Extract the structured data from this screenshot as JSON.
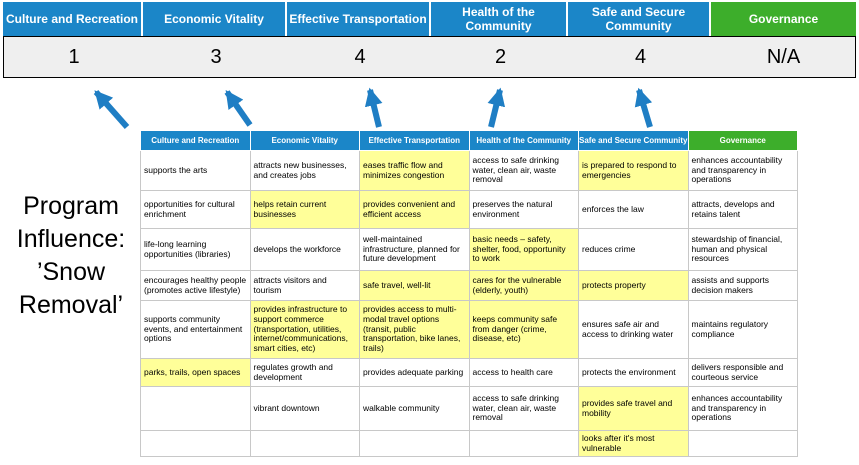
{
  "page": {
    "title": "Program\nInfluence:\n’Snow\nRemoval’"
  },
  "theme": {
    "header_blue": "#1b86c8",
    "header_green": "#3dae2b",
    "highlight_yellow": "#ffff99",
    "arrow_blue": "#1f7ec4",
    "score_band_bg": "#efefef"
  },
  "summary": {
    "columns": [
      {
        "label": "Culture and Recreation",
        "score": "1"
      },
      {
        "label": "Economic Vitality",
        "score": "3"
      },
      {
        "label": "Effective Transportation",
        "score": "4"
      },
      {
        "label": "Health of the Community",
        "score": "2"
      },
      {
        "label": "Safe and Secure Community",
        "score": "4"
      },
      {
        "label": "Governance",
        "score": "N/A"
      }
    ]
  },
  "matrix": {
    "rows": [
      [
        {
          "text": "supports the arts",
          "highlight": false
        },
        {
          "text": "attracts new businesses, and creates jobs",
          "highlight": false
        },
        {
          "text": "eases traffic flow and minimizes congestion",
          "highlight": true
        },
        {
          "text": "access to safe drinking water, clean air, waste removal",
          "highlight": false
        },
        {
          "text": "is prepared to respond to emergencies",
          "highlight": true
        },
        {
          "text": "enhances accountability and transparency in operations",
          "highlight": false
        }
      ],
      [
        {
          "text": "opportunities for cultural enrichment",
          "highlight": false
        },
        {
          "text": "helps retain current businesses",
          "highlight": true
        },
        {
          "text": "provides convenient and efficient access",
          "highlight": true
        },
        {
          "text": "preserves the natural environment",
          "highlight": false
        },
        {
          "text": "enforces the law",
          "highlight": false
        },
        {
          "text": "attracts, develops and retains talent",
          "highlight": false
        }
      ],
      [
        {
          "text": "life-long learning opportunities (libraries)",
          "highlight": false
        },
        {
          "text": "develops the workforce",
          "highlight": false
        },
        {
          "text": "well-maintained infrastructure, planned for future development",
          "highlight": false
        },
        {
          "text": "basic needs – safety, shelter, food, opportunity to work",
          "highlight": true
        },
        {
          "text": "reduces crime",
          "highlight": false
        },
        {
          "text": "stewardship of financial, human and physical resources",
          "highlight": false
        }
      ],
      [
        {
          "text": "encourages healthy people (promotes active lifestyle)",
          "highlight": false
        },
        {
          "text": "attracts visitors and tourism",
          "highlight": false
        },
        {
          "text": "safe travel, well-lit",
          "highlight": true
        },
        {
          "text": "cares for the vulnerable (elderly, youth)",
          "highlight": true
        },
        {
          "text": "protects property",
          "highlight": true
        },
        {
          "text": "assists and supports decision makers",
          "highlight": false
        }
      ],
      [
        {
          "text": "supports community events, and entertainment options",
          "highlight": false
        },
        {
          "text": "provides infrastructure to support commerce (transportation, utilities, internet/communications, smart cities, etc)",
          "highlight": true
        },
        {
          "text": "provides access to multi-modal travel options (transit, public transportation, bike lanes, trails)",
          "highlight": true
        },
        {
          "text": "keeps community safe from danger (crime, disease, etc)",
          "highlight": true
        },
        {
          "text": "ensures safe air and access to drinking water",
          "highlight": false
        },
        {
          "text": "maintains regulatory compliance",
          "highlight": false
        }
      ],
      [
        {
          "text": "parks, trails, open spaces",
          "highlight": true
        },
        {
          "text": "regulates growth and development",
          "highlight": false
        },
        {
          "text": "provides adequate parking",
          "highlight": false
        },
        {
          "text": "access to health care",
          "highlight": false
        },
        {
          "text": "protects the environment",
          "highlight": false
        },
        {
          "text": "delivers responsible and courteous service",
          "highlight": false
        }
      ],
      [
        {
          "text": "",
          "highlight": false
        },
        {
          "text": "vibrant downtown",
          "highlight": false
        },
        {
          "text": "walkable community",
          "highlight": false
        },
        {
          "text": "access to safe drinking water, clean air, waste removal",
          "highlight": false
        },
        {
          "text": "provides safe travel and mobility",
          "highlight": true
        },
        {
          "text": "enhances accountability and transparency in operations",
          "highlight": false
        }
      ],
      [
        {
          "text": "",
          "highlight": false
        },
        {
          "text": "",
          "highlight": false
        },
        {
          "text": "",
          "highlight": false
        },
        {
          "text": "",
          "highlight": false
        },
        {
          "text": "looks after it's most vulnerable",
          "highlight": true
        },
        {
          "text": "",
          "highlight": false
        }
      ]
    ]
  }
}
